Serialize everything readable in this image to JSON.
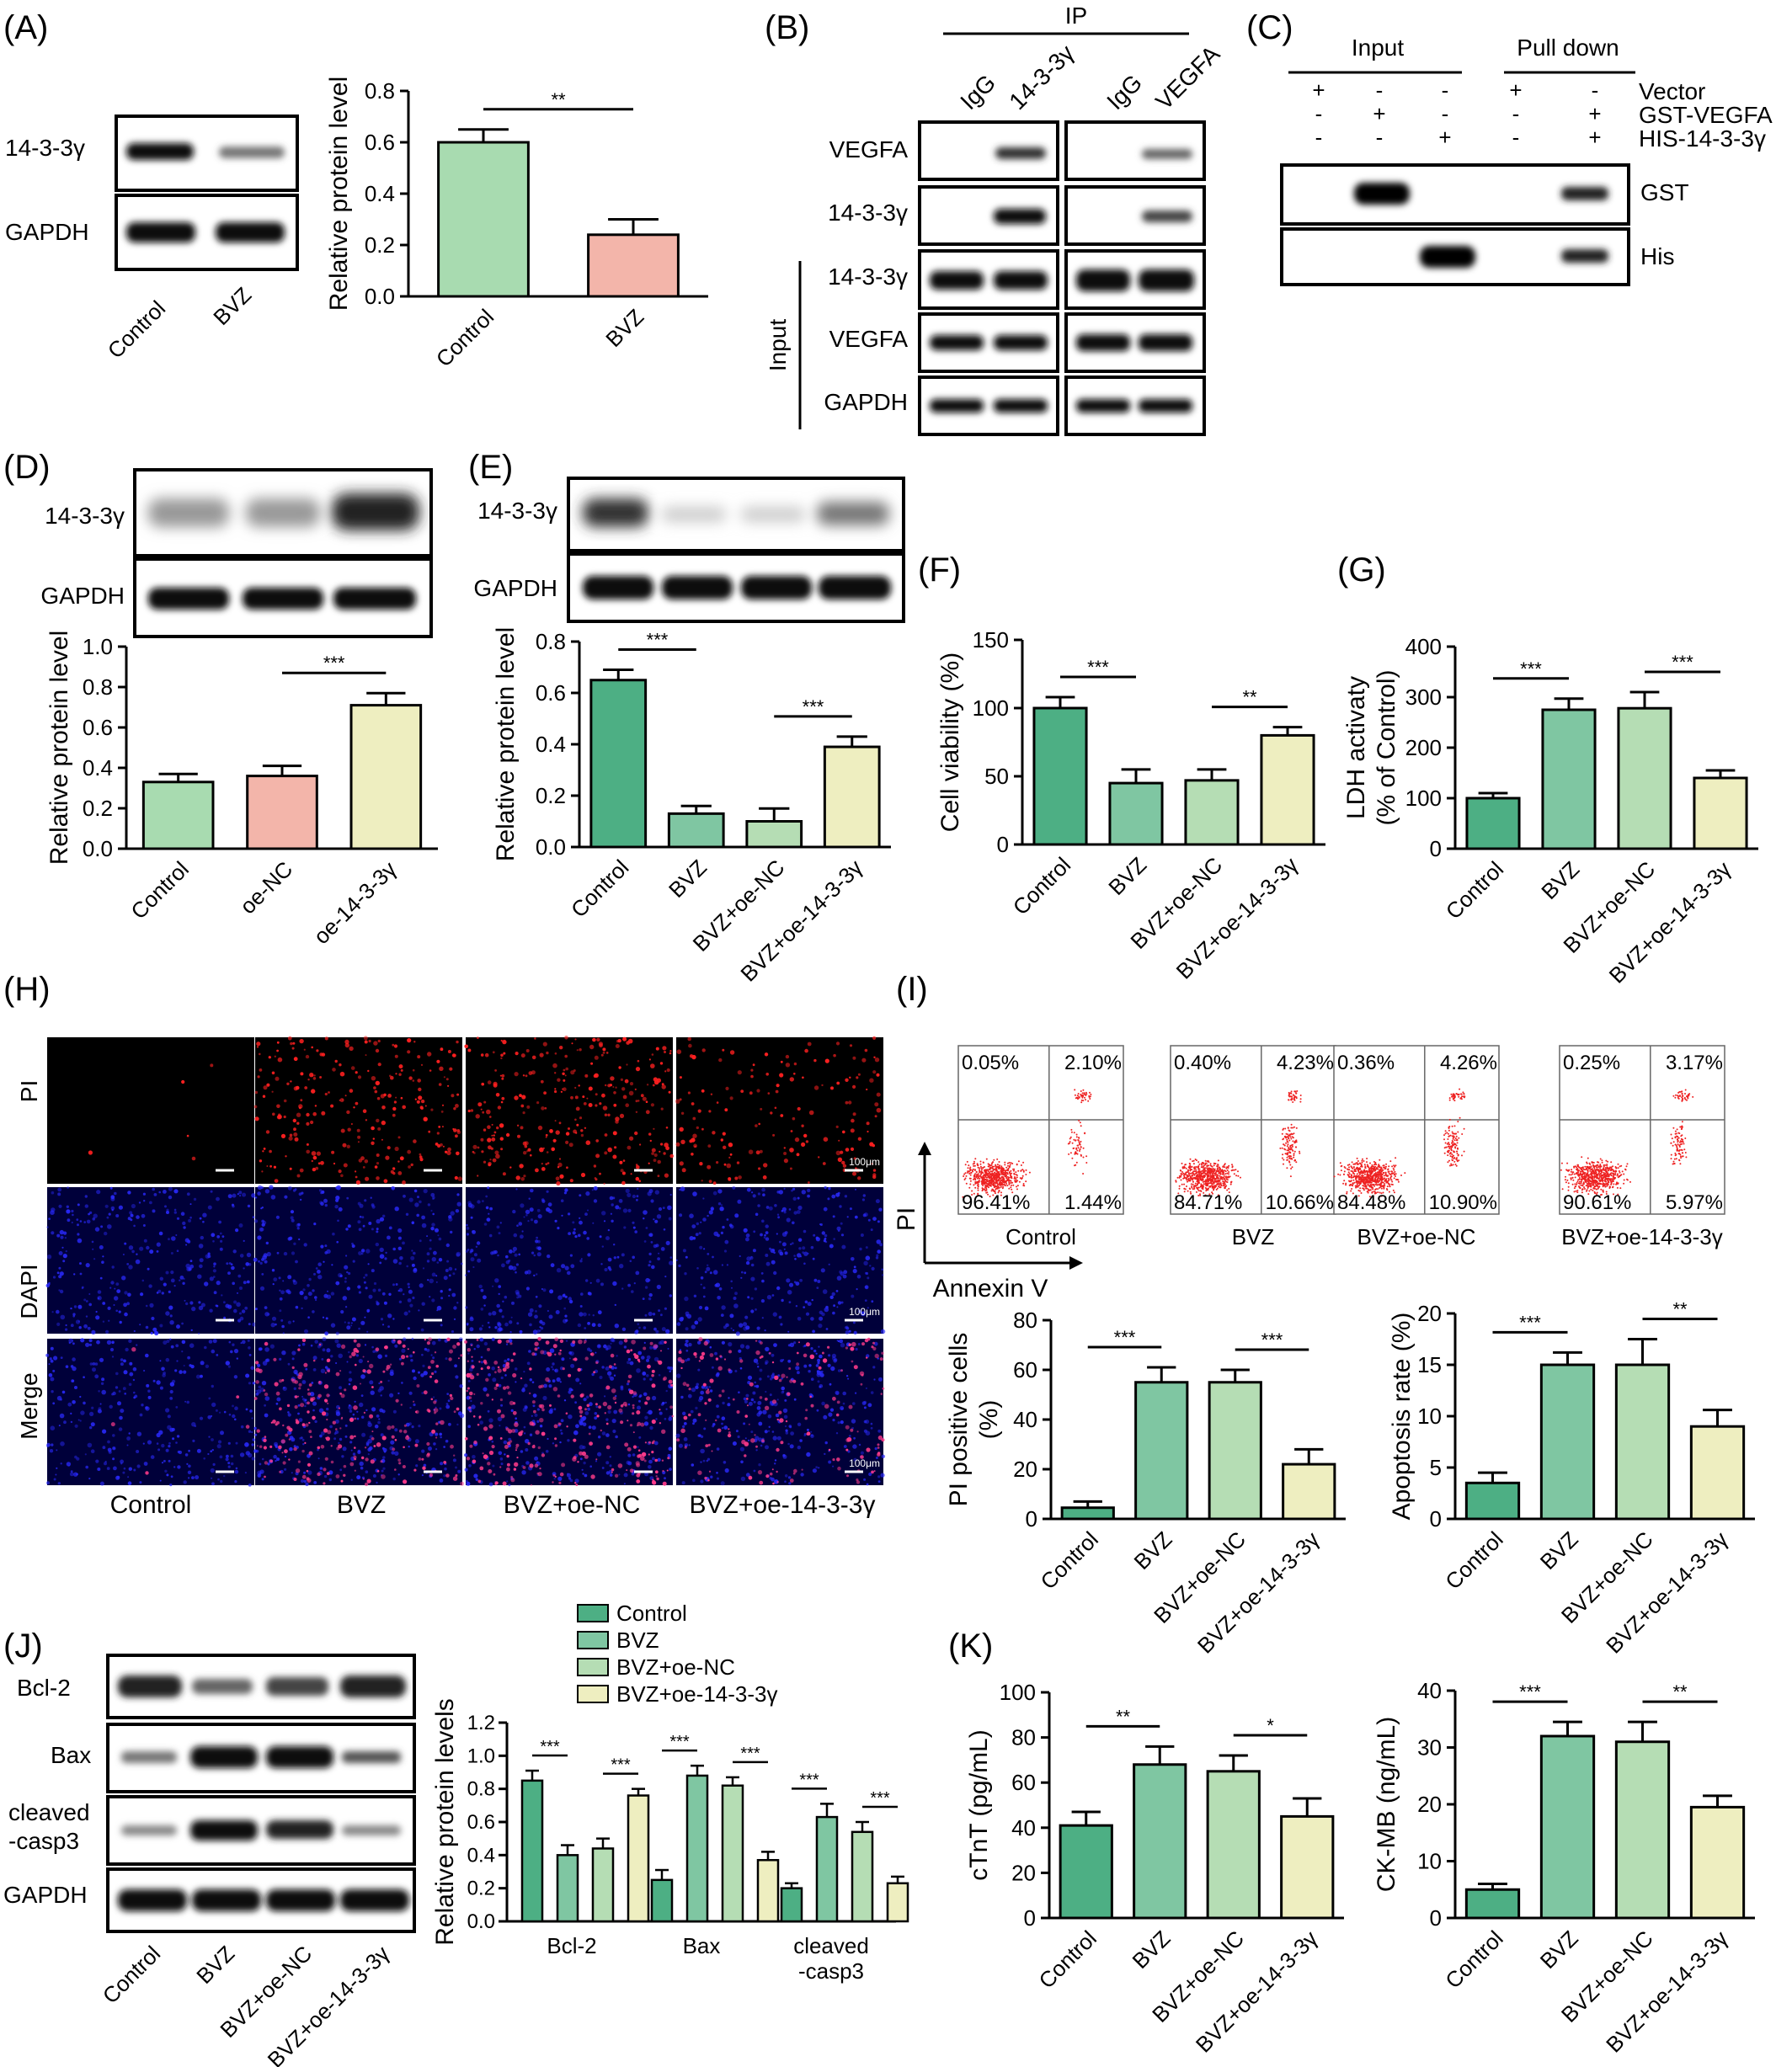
{
  "panels": {
    "A": {
      "letter": "(A)",
      "blot_rows": [
        "14-3-3γ",
        "GAPDH"
      ],
      "blot_lanes": [
        "Control",
        "BVZ"
      ],
      "chart_data": {
        "type": "bar",
        "categories": [
          "Control",
          "BVZ"
        ],
        "values": [
          0.6,
          0.24
        ],
        "errors": [
          0.05,
          0.06
        ],
        "ylabel": "Relative protein level",
        "ylim": [
          0,
          0.8
        ],
        "yticks": [
          "0.0",
          "0.2",
          "0.4",
          "0.6",
          "0.8"
        ],
        "colors": [
          "#a8dbb0",
          "#f3b5aa"
        ],
        "sig": [
          {
            "from": 0,
            "to": 1,
            "label": "**"
          }
        ]
      }
    },
    "B": {
      "letter": "(B)",
      "ip_label": "IP",
      "lanes": [
        "IgG",
        "14-3-3γ",
        "IgG",
        "VEGFA"
      ],
      "ip_rows": [
        "VEGFA",
        "14-3-3γ"
      ],
      "input_rows": [
        "14-3-3γ",
        "VEGFA",
        "GAPDH"
      ],
      "input_label": "Input"
    },
    "C": {
      "letter": "(C)",
      "input_label": "Input",
      "pulldown_label": "Pull down",
      "row_labels": [
        "Vector",
        "GST-VEGFA",
        "HIS-14-3-3γ"
      ],
      "signs": [
        [
          "+",
          "-",
          "-",
          "+",
          "-"
        ],
        [
          "-",
          "+",
          "-",
          "-",
          "+"
        ],
        [
          "-",
          "-",
          "+",
          "-",
          "+"
        ]
      ],
      "blot_rows": [
        "GST",
        "His"
      ]
    },
    "D": {
      "letter": "(D)",
      "blot_rows": [
        "14-3-3γ",
        "GAPDH"
      ],
      "chart_data": {
        "type": "bar",
        "categories": [
          "Control",
          "oe-NC",
          "oe-14-3-3γ"
        ],
        "values": [
          0.33,
          0.36,
          0.71
        ],
        "errors": [
          0.04,
          0.05,
          0.06
        ],
        "ylabel": "Relative protein level",
        "ylim": [
          0,
          1.0
        ],
        "yticks": [
          "0.0",
          "0.2",
          "0.4",
          "0.6",
          "0.8",
          "1.0"
        ],
        "colors": [
          "#a8dbb0",
          "#f3b5aa",
          "#eeeec0"
        ],
        "sig": [
          {
            "from": 1,
            "to": 2,
            "label": "***"
          }
        ]
      }
    },
    "E": {
      "letter": "(E)",
      "blot_rows": [
        "14-3-3γ",
        "GAPDH"
      ],
      "chart_data": {
        "type": "bar",
        "categories": [
          "Control",
          "BVZ",
          "BVZ+oe-NC",
          "BVZ+oe-14-3-3γ"
        ],
        "values": [
          0.65,
          0.13,
          0.1,
          0.39
        ],
        "errors": [
          0.04,
          0.03,
          0.05,
          0.04
        ],
        "ylabel": "Relative protein level",
        "ylim": [
          0,
          0.8
        ],
        "yticks": [
          "0.0",
          "0.2",
          "0.4",
          "0.6",
          "0.8"
        ],
        "colors": [
          "#4daf84",
          "#7fc6a2",
          "#b5ddb4",
          "#eeeec0"
        ],
        "sig": [
          {
            "from": 0,
            "to": 1,
            "label": "***"
          },
          {
            "from": 2,
            "to": 3,
            "label": "***"
          }
        ]
      }
    },
    "F": {
      "letter": "(F)",
      "chart_data": {
        "type": "bar",
        "categories": [
          "Control",
          "BVZ",
          "BVZ+oe-NC",
          "BVZ+oe-14-3-3γ"
        ],
        "values": [
          100,
          45,
          47,
          80
        ],
        "errors": [
          8,
          10,
          8,
          6
        ],
        "ylabel": "Cell viability (%)",
        "ylim": [
          0,
          150
        ],
        "yticks": [
          "0",
          "50",
          "100",
          "150"
        ],
        "colors": [
          "#4daf84",
          "#7fc6a2",
          "#b5ddb4",
          "#eeeec0"
        ],
        "sig": [
          {
            "from": 0,
            "to": 1,
            "label": "***"
          },
          {
            "from": 2,
            "to": 3,
            "label": "**"
          }
        ]
      }
    },
    "G": {
      "letter": "(G)",
      "chart_data": {
        "type": "bar",
        "categories": [
          "Control",
          "BVZ",
          "BVZ+oe-NC",
          "BVZ+oe-14-3-3γ"
        ],
        "values": [
          100,
          275,
          278,
          140
        ],
        "errors": [
          10,
          22,
          32,
          15
        ],
        "ylabel": "LDH activaty",
        "ylabel2": "(% of Control)",
        "ylim": [
          0,
          400
        ],
        "yticks": [
          "0",
          "100",
          "200",
          "300",
          "400"
        ],
        "colors": [
          "#4daf84",
          "#7fc6a2",
          "#b5ddb4",
          "#eeeec0"
        ],
        "sig": [
          {
            "from": 0,
            "to": 1,
            "label": "***"
          },
          {
            "from": 2,
            "to": 3,
            "label": "***"
          }
        ]
      }
    },
    "H": {
      "letter": "(H)",
      "rows": [
        "PI",
        "DAPI",
        "Merge"
      ],
      "cols": [
        "Control",
        "BVZ",
        "BVZ+oe-NC",
        "BVZ+oe-14-3-3γ"
      ],
      "scale_label": "100μm"
    },
    "I": {
      "letter": "(I)",
      "flow": [
        {
          "name": "Control",
          "q": [
            "0.05%",
            "2.10%",
            "96.41%",
            "1.44%"
          ]
        },
        {
          "name": "BVZ",
          "q": [
            "0.40%",
            "4.23%",
            "84.71%",
            "10.66%"
          ]
        },
        {
          "name": "BVZ+oe-NC",
          "q": [
            "0.36%",
            "4.26%",
            "84.48%",
            "10.90%"
          ]
        },
        {
          "name": "BVZ+oe-14-3-3γ",
          "q": [
            "0.25%",
            "3.17%",
            "90.61%",
            "5.97%"
          ]
        }
      ],
      "y_axis": "PI",
      "x_axis": "Annexin V",
      "chart_data": [
        {
          "type": "bar",
          "categories": [
            "Control",
            "BVZ",
            "BVZ+oe-NC",
            "BVZ+oe-14-3-3γ"
          ],
          "values": [
            4.5,
            55,
            55,
            22
          ],
          "errors": [
            2.5,
            6,
            5,
            6
          ],
          "ylabel": "PI positive cells",
          "ylabel2": "(%)",
          "ylim": [
            0,
            80
          ],
          "yticks": [
            "0",
            "20",
            "40",
            "60",
            "80"
          ],
          "colors": [
            "#4daf84",
            "#7fc6a2",
            "#b5ddb4",
            "#eeeec0"
          ],
          "sig": [
            {
              "from": 0,
              "to": 1,
              "label": "***"
            },
            {
              "from": 2,
              "to": 3,
              "label": "***"
            }
          ]
        },
        {
          "type": "bar",
          "categories": [
            "Control",
            "BVZ",
            "BVZ+oe-NC",
            "BVZ+oe-14-3-3γ"
          ],
          "values": [
            3.5,
            15,
            15,
            9
          ],
          "errors": [
            1,
            1.2,
            2.5,
            1.6
          ],
          "ylabel": "Apoptosis rate (%)",
          "ylim": [
            0,
            20
          ],
          "yticks": [
            "0",
            "5",
            "10",
            "15",
            "20"
          ],
          "colors": [
            "#4daf84",
            "#7fc6a2",
            "#b5ddb4",
            "#eeeec0"
          ],
          "sig": [
            {
              "from": 0,
              "to": 1,
              "label": "***"
            },
            {
              "from": 2,
              "to": 3,
              "label": "**"
            }
          ]
        }
      ]
    },
    "J": {
      "letter": "(J)",
      "blot_rows": [
        "Bcl-2",
        "Bax",
        "cleaved",
        "-casp3",
        "GAPDH"
      ],
      "chart_data": {
        "type": "bar",
        "categories": [
          "Bcl-2",
          "Bax",
          "cleaved\n-casp3"
        ],
        "series": [
          {
            "name": "Control",
            "values": [
              0.85,
              0.25,
              0.2
            ],
            "errors": [
              0.06,
              0.06,
              0.03
            ]
          },
          {
            "name": "BVZ",
            "values": [
              0.4,
              0.88,
              0.63
            ],
            "errors": [
              0.06,
              0.06,
              0.08
            ]
          },
          {
            "name": "BVZ+oe-NC",
            "values": [
              0.44,
              0.82,
              0.54
            ],
            "errors": [
              0.06,
              0.05,
              0.06
            ]
          },
          {
            "name": "BVZ+oe-14-3-3γ",
            "values": [
              0.76,
              0.37,
              0.23
            ],
            "errors": [
              0.04,
              0.05,
              0.04
            ]
          }
        ],
        "ylabel": "Relative protein levels",
        "ylim": [
          0,
          1.2
        ],
        "yticks": [
          "0.0",
          "0.2",
          "0.4",
          "0.6",
          "0.8",
          "1.0",
          "1.2"
        ],
        "colors": [
          "#4daf84",
          "#7fc6a2",
          "#b5ddb4",
          "#eeeec0"
        ],
        "legend": "top",
        "sig_label": "***"
      },
      "blot_lanes": [
        "Control",
        "BVZ",
        "BVZ+oe-NC",
        "BVZ+oe-14-3-3γ"
      ]
    },
    "K": {
      "letter": "(K)",
      "chart_data": [
        {
          "type": "bar",
          "categories": [
            "Control",
            "BVZ",
            "BVZ+oe-NC",
            "BVZ+oe-14-3-3γ"
          ],
          "values": [
            41,
            68,
            65,
            45
          ],
          "errors": [
            6,
            8,
            7,
            8
          ],
          "ylabel": "cTnT (pg/mL)",
          "ylim": [
            0,
            100
          ],
          "yticks": [
            "0",
            "20",
            "40",
            "60",
            "80",
            "100"
          ],
          "colors": [
            "#4daf84",
            "#7fc6a2",
            "#b5ddb4",
            "#eeeec0"
          ],
          "sig": [
            {
              "from": 0,
              "to": 1,
              "label": "**"
            },
            {
              "from": 2,
              "to": 3,
              "label": "*"
            }
          ]
        },
        {
          "type": "bar",
          "categories": [
            "Control",
            "BVZ",
            "BVZ+oe-NC",
            "BVZ+oe-14-3-3γ"
          ],
          "values": [
            5,
            32,
            31,
            19.5
          ],
          "errors": [
            1,
            2.5,
            3.5,
            2
          ],
          "ylabel": "CK-MB (ng/mL)",
          "ylim": [
            0,
            40
          ],
          "yticks": [
            "0",
            "10",
            "20",
            "30",
            "40"
          ],
          "colors": [
            "#4daf84",
            "#7fc6a2",
            "#b5ddb4",
            "#eeeec0"
          ],
          "sig": [
            {
              "from": 0,
              "to": 1,
              "label": "***"
            },
            {
              "from": 2,
              "to": 3,
              "label": "**"
            }
          ]
        }
      ]
    }
  }
}
